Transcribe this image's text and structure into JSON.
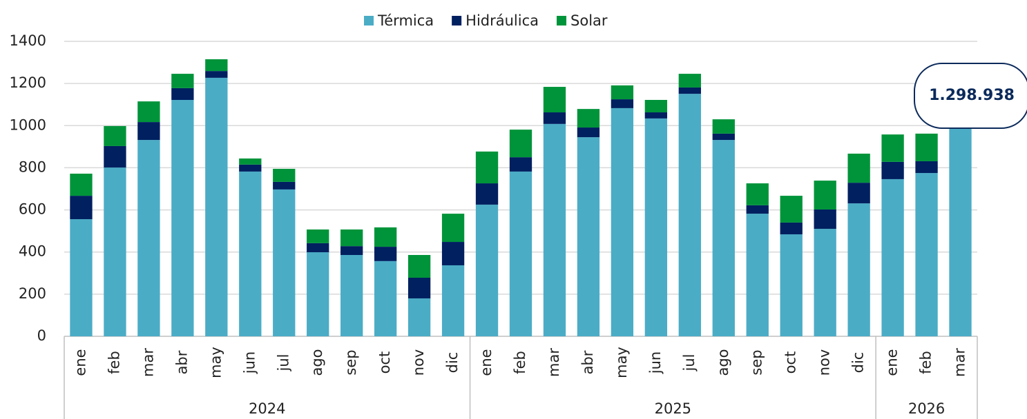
{
  "chart_data": {
    "type": "stacked_bar",
    "groups": [
      {
        "label": "2024",
        "categories": [
          "ene",
          "feb",
          "mar",
          "abr",
          "may",
          "jun",
          "jul",
          "ago",
          "sep",
          "oct",
          "nov",
          "dic"
        ]
      },
      {
        "label": "2025",
        "categories": [
          "ene",
          "feb",
          "mar",
          "abr",
          "may",
          "jun",
          "jul",
          "ago",
          "sep",
          "oct",
          "nov",
          "dic"
        ]
      },
      {
        "label": "2026",
        "categories": [
          "ene",
          "feb",
          "mar"
        ]
      }
    ],
    "series": [
      {
        "name": "Térmica",
        "color": "#4bacc6",
        "values": [
          556,
          801,
          932,
          1122,
          1227,
          782,
          697,
          399,
          386,
          357,
          180,
          337,
          625,
          782,
          1008,
          945,
          1083,
          1034,
          1151,
          932,
          582,
          484,
          510,
          631,
          746,
          775,
          991
        ]
      },
      {
        "name": "Hidráulica",
        "color": "#002060",
        "values": [
          111,
          102,
          85,
          56,
          32,
          33,
          36,
          43,
          42,
          68,
          98,
          111,
          101,
          68,
          55,
          46,
          42,
          29,
          30,
          30,
          40,
          56,
          92,
          98,
          82,
          56,
          null
        ]
      },
      {
        "name": "Solar",
        "color": "#00943a",
        "values": [
          105,
          95,
          98,
          68,
          56,
          29,
          62,
          65,
          79,
          92,
          108,
          134,
          151,
          131,
          121,
          88,
          66,
          59,
          65,
          68,
          104,
          127,
          137,
          138,
          130,
          131,
          null
        ]
      }
    ],
    "ylim": [
      0,
      1400
    ],
    "yticks": [
      0,
      200,
      400,
      600,
      800,
      1000,
      1200,
      1400
    ],
    "grid": true,
    "legend": "top",
    "annotation": "1.298.938"
  }
}
